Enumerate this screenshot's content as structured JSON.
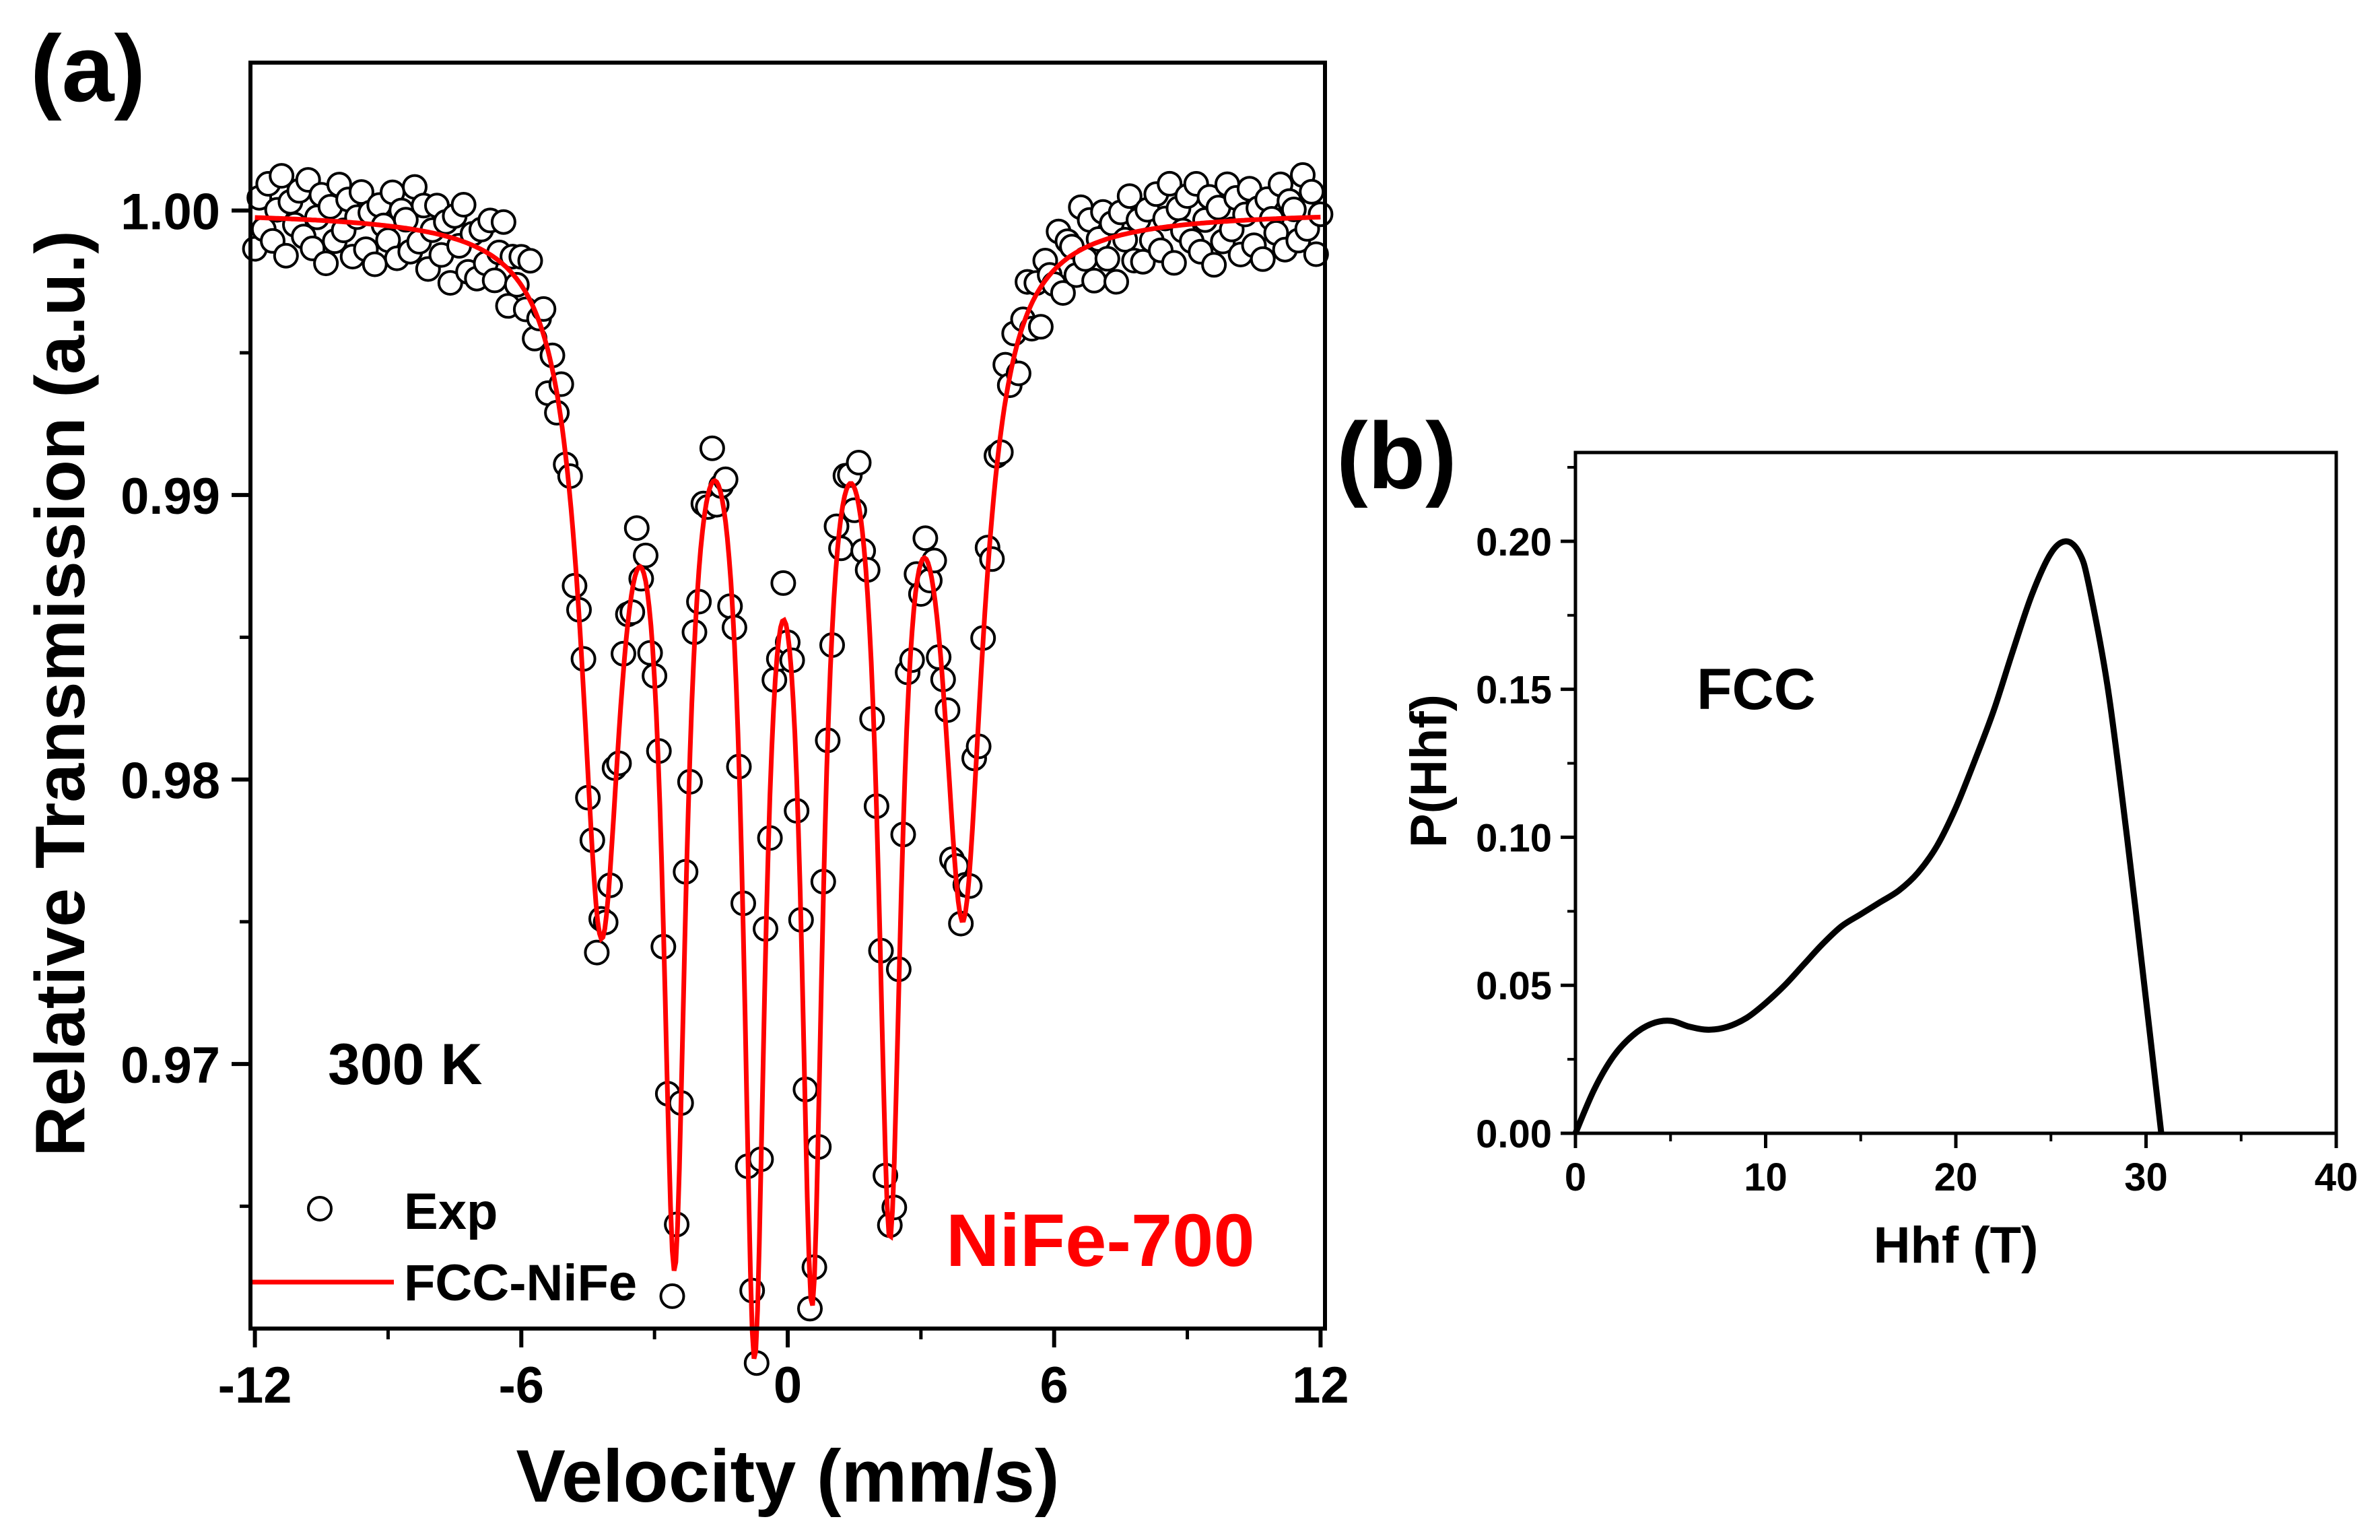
{
  "chart_data": [
    {
      "panel_label": "(a)",
      "type": "scatter",
      "xlabel": "Velocity (mm/s)",
      "ylabel": "Relative Transmission (a.u.)",
      "xlim": [
        -12.1,
        12.1
      ],
      "ylim": [
        0.9607,
        1.0052
      ],
      "xticks": [
        -12,
        -6,
        0,
        6,
        12
      ],
      "xtick_labels": [
        "-12",
        "-6",
        "0",
        "6",
        "12"
      ],
      "yticks": [
        0.97,
        0.98,
        0.99,
        1.0
      ],
      "ytick_labels": [
        "0.97",
        "0.98",
        "0.99",
        "1.00"
      ],
      "annotations": {
        "temperature": "300 K",
        "sample": "NiFe-700"
      },
      "legend": {
        "position": "bottom-left",
        "entries": [
          "Exp",
          "FCC-NiFe"
        ]
      },
      "fit_model": {
        "baseline": 1.0,
        "lines": [
          {
            "center": -4.2,
            "depth": 0.0238,
            "width": 0.55
          },
          {
            "center": -2.55,
            "depth": 0.0333,
            "width": 0.32
          },
          {
            "center": -0.75,
            "depth": 0.0364,
            "width": 0.3
          },
          {
            "center": 0.55,
            "depth": 0.0344,
            "width": 0.3
          },
          {
            "center": 2.3,
            "depth": 0.0322,
            "width": 0.32
          },
          {
            "center": 3.95,
            "depth": 0.0232,
            "width": 0.55
          }
        ]
      },
      "series": [
        {
          "name": "Exp",
          "x": [
            -12.0,
            -11.9,
            -11.8,
            -11.7,
            -11.6,
            -11.5,
            -11.4,
            -11.3,
            -11.2,
            -11.1,
            -11.0,
            -10.9,
            -10.8,
            -10.7,
            -10.6,
            -10.5,
            -10.4,
            -10.3,
            -10.2,
            -10.1,
            -10.0,
            -9.9,
            -9.8,
            -9.7,
            -9.6,
            -9.5,
            -9.4,
            -9.3,
            -9.2,
            -9.1,
            -9.0,
            -8.9,
            -8.8,
            -8.7,
            -8.6,
            -8.5,
            -8.4,
            -8.3,
            -8.2,
            -8.1,
            -8.0,
            -7.9,
            -7.8,
            -7.7,
            -7.6,
            -7.5,
            -7.4,
            -7.3,
            -7.2,
            -7.1,
            -7.0,
            -6.9,
            -6.8,
            -6.7,
            -6.6,
            -6.5,
            -6.4,
            -6.3,
            -6.2,
            -6.1,
            -6.0,
            -5.9,
            -5.8,
            -5.7,
            -5.6,
            -5.5,
            -5.4,
            -5.3,
            -5.2,
            -5.1,
            -5.0,
            -4.9,
            -4.8,
            -4.7,
            -4.6,
            -4.5,
            -4.4,
            -4.3,
            -4.2,
            -4.1,
            -4.0,
            -3.9,
            -3.8,
            -3.7,
            -3.6,
            -3.5,
            -3.4,
            -3.3,
            -3.2,
            -3.1,
            -3.0,
            -2.9,
            -2.8,
            -2.7,
            -2.6,
            -2.5,
            -2.4,
            -2.3,
            -2.2,
            -2.1,
            -2.0,
            -1.9,
            -1.8,
            -1.7,
            -1.6,
            -1.5,
            -1.4,
            -1.3,
            -1.2,
            -1.1,
            -1.0,
            -0.9,
            -0.8,
            -0.7,
            -0.6,
            -0.5,
            -0.4,
            -0.3,
            -0.2,
            -0.1,
            0.0,
            0.1,
            0.2,
            0.3,
            0.4,
            0.5,
            0.6,
            0.7,
            0.8,
            0.9,
            1.0,
            1.1,
            1.2,
            1.3,
            1.4,
            1.5,
            1.6,
            1.7,
            1.8,
            1.9,
            2.0,
            2.1,
            2.2,
            2.3,
            2.4,
            2.5,
            2.6,
            2.7,
            2.8,
            2.9,
            3.0,
            3.1,
            3.2,
            3.3,
            3.4,
            3.5,
            3.6,
            3.7,
            3.8,
            3.9,
            4.0,
            4.1,
            4.2,
            4.3,
            4.4,
            4.5,
            4.6,
            4.7,
            4.8,
            4.9,
            5.0,
            5.1,
            5.2,
            5.3,
            5.4,
            5.5,
            5.6,
            5.7,
            5.8,
            5.9,
            6.0,
            6.1,
            6.2,
            6.3,
            6.4,
            6.5,
            6.6,
            6.7,
            6.8,
            6.9,
            7.0,
            7.1,
            7.2,
            7.3,
            7.4,
            7.5,
            7.6,
            7.7,
            7.8,
            7.9,
            8.0,
            8.1,
            8.2,
            8.3,
            8.4,
            8.5,
            8.6,
            8.7,
            8.8,
            8.9,
            9.0,
            9.1,
            9.2,
            9.3,
            9.4,
            9.5,
            9.6,
            9.7,
            9.8,
            9.9,
            10.0,
            10.1,
            10.2,
            10.3,
            10.4,
            10.5,
            10.6,
            10.7,
            10.8,
            10.9,
            11.0,
            11.1,
            11.2,
            11.3,
            11.4,
            11.5,
            11.6,
            11.7,
            11.8,
            11.9,
            12.0
          ],
          "noise": [
            -0.0011,
            0.0007,
            -0.0004,
            0.0012,
            -0.0008,
            0.0003,
            0.0015,
            -0.0013,
            0.0006,
            -0.0002,
            0.001,
            -0.0006,
            0.0014,
            -0.001,
            0.0001,
            0.0009,
            -0.0015,
            0.0005,
            -0.0007,
            0.0013,
            -0.0003,
            0.0008,
            -0.0012,
            0.0002,
            0.0011,
            -0.0009,
            0.0004,
            -0.0014,
            0.0007,
            0.0,
            -0.0005,
            0.0012,
            -0.0011,
            0.0006,
            0.0003,
            -0.0008,
            0.0015,
            -0.0004,
            0.0009,
            -0.0013,
            0.0001,
            0.001,
            -0.0007,
            0.0005,
            -0.0016,
            0.0008,
            -0.0002,
            0.0013,
            -0.001,
            0.0004
          ],
          "markers": "open circles"
        },
        {
          "name": "FCC-NiFe",
          "type": "line",
          "color": "#ff0000"
        }
      ]
    },
    {
      "panel_label": "(b)",
      "type": "line",
      "xlabel": "Hhf (T)",
      "ylabel": "P(Hhf)",
      "xlim": [
        0,
        40
      ],
      "ylim": [
        0,
        0.23
      ],
      "xticks": [
        0,
        10,
        20,
        30,
        40
      ],
      "xtick_labels": [
        "0",
        "10",
        "20",
        "30",
        "40"
      ],
      "yticks": [
        0.0,
        0.05,
        0.1,
        0.15,
        0.2
      ],
      "ytick_labels": [
        "0.00",
        "0.05",
        "0.10",
        "0.15",
        "0.20"
      ],
      "annotations": {
        "phase": "FCC"
      },
      "series": [
        {
          "name": "P(Hhf)",
          "color": "#000000",
          "x": [
            0,
            1,
            2,
            3,
            4,
            5,
            6,
            7,
            8,
            9,
            10,
            11,
            12,
            13,
            14,
            15,
            16,
            17,
            18,
            19,
            20,
            21,
            22,
            23,
            24,
            25,
            25.8,
            26.5,
            27,
            28,
            29,
            30,
            30.8
          ],
          "values": [
            0.0,
            0.015,
            0.026,
            0.033,
            0.037,
            0.038,
            0.036,
            0.035,
            0.036,
            0.039,
            0.044,
            0.05,
            0.057,
            0.064,
            0.07,
            0.074,
            0.078,
            0.082,
            0.088,
            0.097,
            0.11,
            0.126,
            0.143,
            0.163,
            0.182,
            0.196,
            0.2,
            0.196,
            0.185,
            0.15,
            0.1,
            0.045,
            0.0
          ]
        }
      ]
    }
  ]
}
